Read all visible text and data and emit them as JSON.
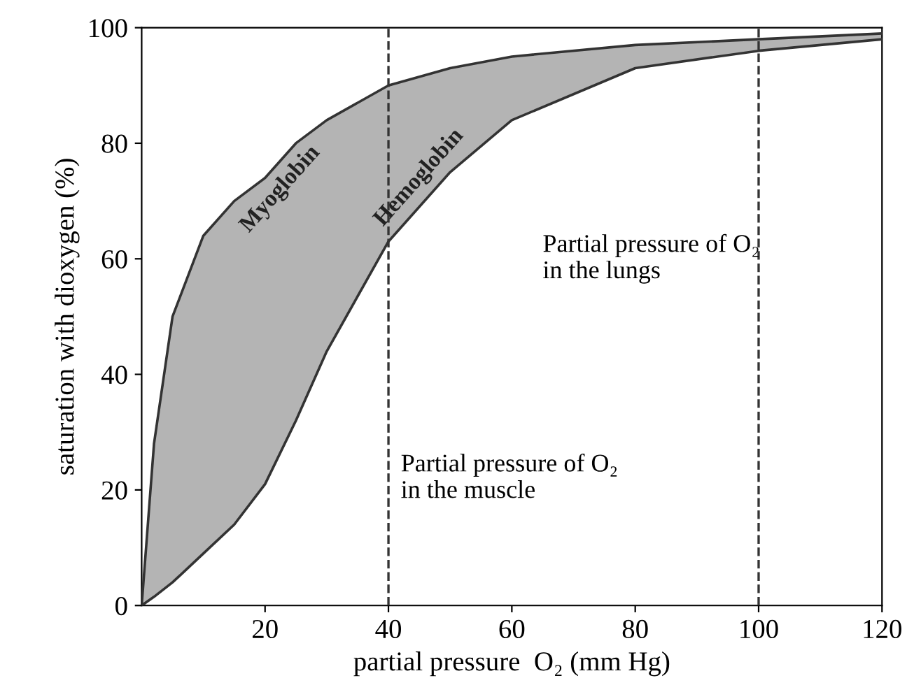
{
  "chart_data": {
    "type": "line",
    "xlabel": "partial pressure  O₂ (mm Hg)",
    "ylabel": "saturation with dioxygen (%)",
    "xlim": [
      0,
      120
    ],
    "ylim": [
      0,
      100
    ],
    "xticks": [
      20,
      40,
      60,
      80,
      100,
      120
    ],
    "yticks": [
      0,
      20,
      40,
      60,
      80,
      100
    ],
    "grid": false,
    "legend": false,
    "x": [
      0,
      2,
      5,
      10,
      15,
      20,
      25,
      30,
      40,
      50,
      60,
      80,
      100,
      120
    ],
    "series": [
      {
        "name": "Myoglobin",
        "color": "#333333",
        "values": [
          0,
          28,
          50,
          64,
          70,
          74,
          80,
          84,
          90,
          93,
          95,
          97,
          98,
          99
        ]
      },
      {
        "name": "Hemoglobin",
        "color": "#333333",
        "values": [
          0,
          1.5,
          4,
          9,
          14,
          21,
          32,
          44,
          63,
          75,
          84,
          93,
          96,
          98
        ],
        "lower": [
          0,
          1.5,
          4,
          9,
          14,
          21,
          32,
          44,
          63,
          75,
          84,
          93,
          96,
          98
        ],
        "upper": [
          0,
          28,
          50,
          64,
          70,
          74,
          80,
          84,
          90,
          93,
          95,
          97,
          98,
          99
        ]
      }
    ],
    "ref_lines": [
      {
        "axis": "x",
        "value": 40,
        "label": "Partial pressure of O₂\nin the muscle",
        "line_style": "dashed",
        "color": "#333333"
      },
      {
        "axis": "x",
        "value": 100,
        "label": "Partial pressure of O₂\nin the lungs",
        "line_style": "dashed",
        "color": "#333333"
      }
    ]
  }
}
